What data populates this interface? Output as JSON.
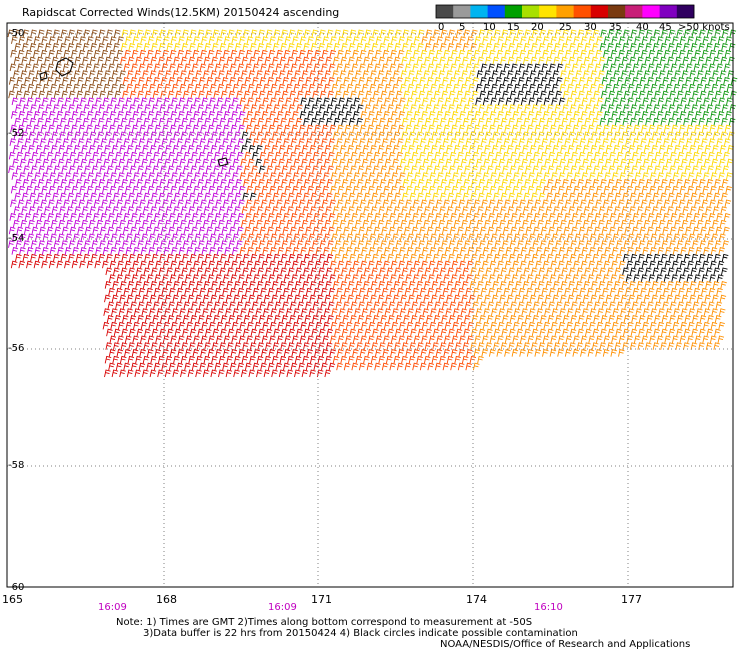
{
  "title": "Rapidscat Corrected Winds(12.5KM) 20150424 ascending",
  "legend": {
    "labels": [
      "0",
      "5",
      "10",
      "15",
      "20",
      "25",
      "30",
      "35",
      "40",
      "45",
      ">50 knots"
    ],
    "colors": [
      "#4a4a4a",
      "#9a9a9a",
      "#00b4f0",
      "#0050ff",
      "#00a000",
      "#a8e000",
      "#ffe400",
      "#ffa000",
      "#ff5000",
      "#d80000",
      "#7a3a10",
      "#c81e78",
      "#ff00ff",
      "#8000c0",
      "#300060"
    ]
  },
  "lat_labels": [
    "-50",
    "-52",
    "-54",
    "-56",
    "-58",
    "-60"
  ],
  "lon_labels": [
    "165",
    "168",
    "171",
    "174",
    "177"
  ],
  "time_labels": [
    "16:09",
    "16:09",
    "16:10"
  ],
  "notes": {
    "line1": "Note: 1) Times are GMT 2)Times along bottom correspond to measurement at -50S",
    "line2": "3)Data buffer is 22 hrs from 20150424 4) Black circles indicate possible contamination",
    "line3": "NOAA/NESDIS/Office of Research and Applications"
  },
  "colors": {
    "time_label": "#c000c0",
    "grid": "#808080"
  }
}
